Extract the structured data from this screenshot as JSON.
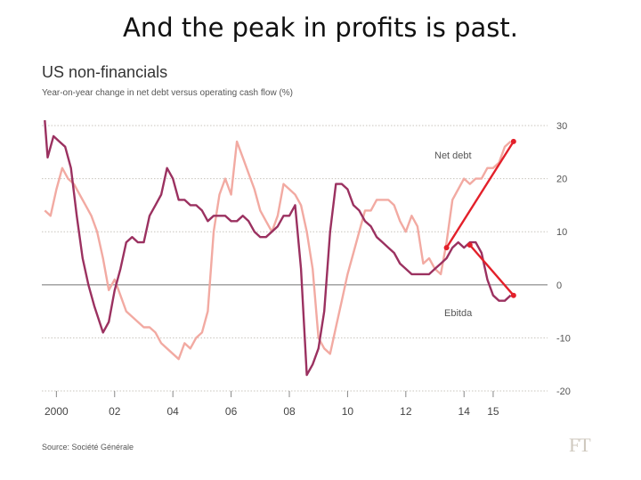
{
  "slide": {
    "title": "And the peak in profits is past."
  },
  "source": "Source: Société Générale",
  "brand": "FT",
  "colors": {
    "ebitda": "#9b3160",
    "net_debt": "#f2aaa2",
    "arrow": "#e3202a",
    "grid": "#c8c4bd",
    "zero": "#9a9a9a"
  },
  "chart_data": {
    "type": "line",
    "title": "US non-financials",
    "subtitle": "Year-on-year change in net debt versus operating cash flow (%)",
    "xlabel": "",
    "ylabel": "",
    "xlim": [
      1999.5,
      2016.5
    ],
    "ylim": [
      -20,
      30
    ],
    "y_ticks": [
      30,
      20,
      10,
      0,
      -10,
      -20
    ],
    "x_ticks": [
      {
        "value": 2000,
        "label": "2000"
      },
      {
        "value": 2002,
        "label": "02"
      },
      {
        "value": 2004,
        "label": "04"
      },
      {
        "value": 2006,
        "label": "06"
      },
      {
        "value": 2008,
        "label": "08"
      },
      {
        "value": 2010,
        "label": "10"
      },
      {
        "value": 2012,
        "label": "12"
      },
      {
        "value": 2014,
        "label": "14"
      },
      {
        "value": 2015,
        "label": "15"
      }
    ],
    "series": [
      {
        "name": "Ebitda",
        "label": "Ebitda",
        "x": [
          1999.6,
          1999.7,
          1999.9,
          2000.1,
          2000.3,
          2000.5,
          2000.7,
          2000.9,
          2001.1,
          2001.3,
          2001.6,
          2001.8,
          2002.0,
          2002.2,
          2002.4,
          2002.6,
          2002.8,
          2003.0,
          2003.2,
          2003.4,
          2003.6,
          2003.8,
          2004.0,
          2004.2,
          2004.4,
          2004.6,
          2004.8,
          2005.0,
          2005.2,
          2005.4,
          2005.6,
          2005.8,
          2006.0,
          2006.2,
          2006.4,
          2006.6,
          2006.8,
          2007.0,
          2007.2,
          2007.4,
          2007.6,
          2007.8,
          2008.0,
          2008.2,
          2008.4,
          2008.6,
          2008.8,
          2009.0,
          2009.2,
          2009.4,
          2009.6,
          2009.8,
          2010.0,
          2010.2,
          2010.4,
          2010.6,
          2010.8,
          2011.0,
          2011.2,
          2011.4,
          2011.6,
          2011.8,
          2012.0,
          2012.2,
          2012.4,
          2012.6,
          2012.8,
          2013.0,
          2013.2,
          2013.4,
          2013.6,
          2013.8,
          2014.0,
          2014.2,
          2014.4,
          2014.6,
          2014.8,
          2015.0,
          2015.2,
          2015.4,
          2015.6
        ],
        "values": [
          31,
          24,
          28,
          27,
          26,
          22,
          13,
          5,
          0,
          -4,
          -9,
          -7,
          -1,
          3,
          8,
          9,
          8,
          8,
          13,
          15,
          17,
          22,
          20,
          16,
          16,
          15,
          15,
          14,
          12,
          13,
          13,
          13,
          12,
          12,
          13,
          12,
          10,
          9,
          9,
          10,
          11,
          13,
          13,
          15,
          3,
          -17,
          -15,
          -12,
          -5,
          10,
          19,
          19,
          18,
          15,
          14,
          12,
          11,
          9,
          8,
          7,
          6,
          4,
          3,
          2,
          2,
          2,
          2,
          3,
          4,
          5,
          7,
          8,
          7,
          8,
          8,
          6,
          1,
          -2,
          -3,
          -3,
          -2
        ]
      },
      {
        "name": "Net debt",
        "label": "Net debt",
        "x": [
          1999.6,
          1999.8,
          2000.0,
          2000.2,
          2000.4,
          2000.6,
          2000.8,
          2001.0,
          2001.2,
          2001.4,
          2001.6,
          2001.8,
          2002.0,
          2002.2,
          2002.4,
          2002.6,
          2002.8,
          2003.0,
          2003.2,
          2003.4,
          2003.6,
          2003.8,
          2004.0,
          2004.2,
          2004.4,
          2004.6,
          2004.8,
          2005.0,
          2005.2,
          2005.4,
          2005.6,
          2005.8,
          2006.0,
          2006.2,
          2006.4,
          2006.6,
          2006.8,
          2007.0,
          2007.2,
          2007.4,
          2007.6,
          2007.8,
          2008.0,
          2008.2,
          2008.4,
          2008.6,
          2008.8,
          2009.0,
          2009.2,
          2009.4,
          2009.6,
          2009.8,
          2010.0,
          2010.2,
          2010.4,
          2010.6,
          2010.8,
          2011.0,
          2011.2,
          2011.4,
          2011.6,
          2011.8,
          2012.0,
          2012.2,
          2012.4,
          2012.6,
          2012.8,
          2013.0,
          2013.2,
          2013.4,
          2013.6,
          2013.8,
          2014.0,
          2014.2,
          2014.4,
          2014.6,
          2014.8,
          2015.0,
          2015.2,
          2015.4,
          2015.6
        ],
        "values": [
          14,
          13,
          18,
          22,
          20,
          19,
          17,
          15,
          13,
          10,
          5,
          -1,
          1,
          -2,
          -5,
          -6,
          -7,
          -8,
          -8,
          -9,
          -11,
          -12,
          -13,
          -14,
          -11,
          -12,
          -10,
          -9,
          -5,
          10,
          17,
          20,
          17,
          27,
          24,
          21,
          18,
          14,
          12,
          10,
          13,
          19,
          18,
          17,
          15,
          10,
          3,
          -10,
          -12,
          -13,
          -8,
          -3,
          2,
          6,
          10,
          14,
          14,
          16,
          16,
          16,
          15,
          12,
          10,
          13,
          11,
          4,
          5,
          3,
          2,
          8,
          16,
          18,
          20,
          19,
          20,
          20,
          22,
          22,
          23,
          26,
          27
        ]
      }
    ],
    "annotations": [
      {
        "text": "Net debt",
        "series": "Net debt"
      },
      {
        "text": "Ebitda",
        "series": "Ebitda"
      }
    ],
    "arrows": [
      {
        "from": [
          2013.4,
          7
        ],
        "to": [
          2015.7,
          27
        ]
      },
      {
        "from": [
          2014.2,
          7.5
        ],
        "to": [
          2015.7,
          -2
        ]
      }
    ]
  }
}
